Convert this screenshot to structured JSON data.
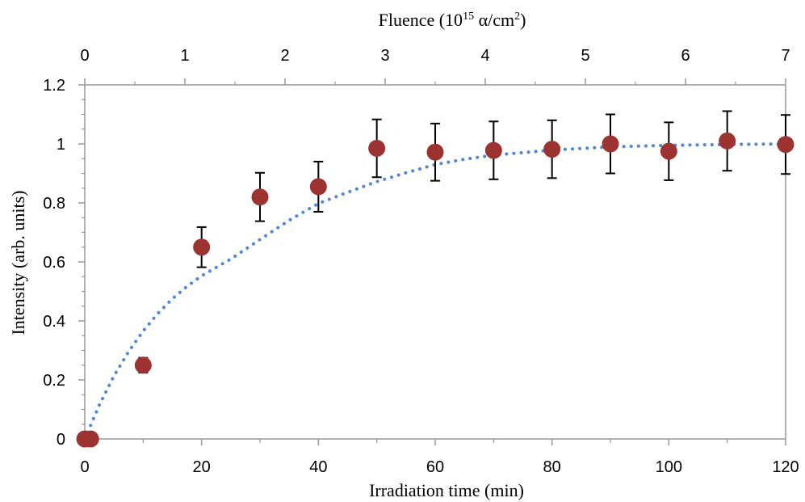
{
  "chart_data": {
    "type": "scatter",
    "title": "",
    "xlabel": "Irradiation time (min)",
    "ylabel": "Intensity (arb. units)",
    "top_xlabel": {
      "prefix": "Fluence (10",
      "sup1": "15",
      "middle": " α/cm",
      "sup2": "2",
      "suffix": ")"
    },
    "xlim": [
      0,
      120
    ],
    "ylim": [
      0,
      1.2
    ],
    "top_xlim": [
      0,
      7
    ],
    "x_ticks": [
      0,
      20,
      40,
      60,
      80,
      100,
      120
    ],
    "y_ticks": [
      0,
      0.2,
      0.4,
      0.6,
      0.8,
      1,
      1.2
    ],
    "top_x_ticks": [
      0,
      1,
      2,
      3,
      4,
      5,
      6,
      7
    ],
    "grid": false,
    "series": [
      {
        "marker": "circle",
        "color": "#9c3330",
        "points": [
          {
            "x": 0,
            "y": 0,
            "err": 0
          },
          {
            "x": 1,
            "y": 0,
            "err": 0
          },
          {
            "x": 10,
            "y": 0.25,
            "err": 0.025
          },
          {
            "x": 20,
            "y": 0.65,
            "err": 0.068
          },
          {
            "x": 30,
            "y": 0.82,
            "err": 0.082
          },
          {
            "x": 40,
            "y": 0.855,
            "err": 0.085
          },
          {
            "x": 50,
            "y": 0.985,
            "err": 0.098
          },
          {
            "x": 60,
            "y": 0.972,
            "err": 0.097
          },
          {
            "x": 70,
            "y": 0.978,
            "err": 0.098
          },
          {
            "x": 80,
            "y": 0.982,
            "err": 0.098
          },
          {
            "x": 90,
            "y": 1.0,
            "err": 0.1
          },
          {
            "x": 100,
            "y": 0.975,
            "err": 0.098
          },
          {
            "x": 110,
            "y": 1.01,
            "err": 0.101
          },
          {
            "x": 120,
            "y": 0.998,
            "err": 0.1
          }
        ]
      }
    ],
    "fit": {
      "style": "dotted",
      "color": "#4f87d6",
      "x": [
        0,
        2.5,
        5,
        7.5,
        10,
        12.5,
        15,
        17.5,
        20,
        25,
        30,
        35,
        40,
        45,
        50,
        55,
        60,
        65,
        70,
        80,
        90,
        100,
        110,
        120
      ],
      "y": [
        0,
        0.116,
        0.214,
        0.296,
        0.366,
        0.425,
        0.475,
        0.517,
        0.553,
        0.61,
        0.676,
        0.741,
        0.798,
        0.836,
        0.872,
        0.902,
        0.93,
        0.948,
        0.962,
        0.979,
        0.99,
        0.995,
        0.998,
        1.0
      ]
    }
  }
}
